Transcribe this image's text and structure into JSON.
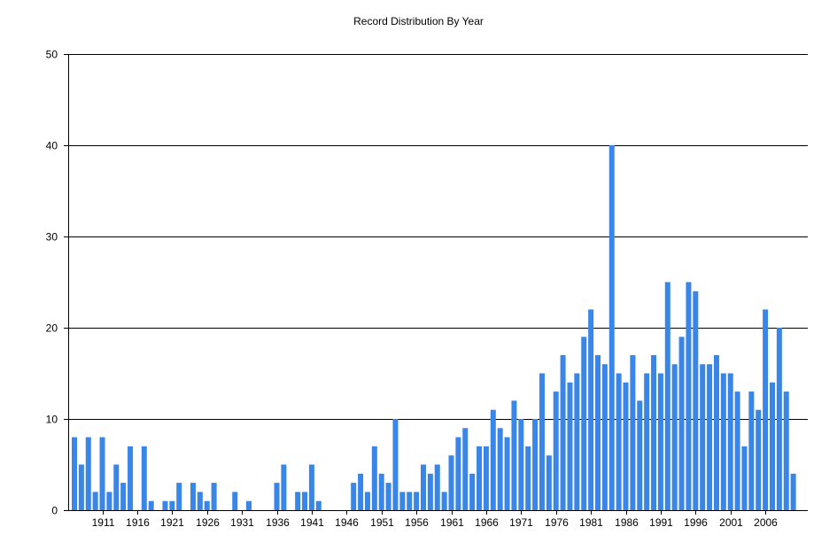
{
  "chart_data": {
    "type": "bar",
    "title": "Record Distribution By Year",
    "xlabel": "",
    "ylabel": "",
    "bar_color": "#3a86e8",
    "grid": true,
    "ylim": [
      0,
      50
    ],
    "yticks": [
      0,
      10,
      20,
      30,
      40,
      50
    ],
    "x_start": 1907,
    "x_end": 2010,
    "xtick_years": [
      1911,
      1916,
      1921,
      1926,
      1931,
      1936,
      1941,
      1946,
      1951,
      1956,
      1961,
      1966,
      1971,
      1976,
      1981,
      1986,
      1991,
      1996,
      2001,
      2006
    ],
    "xtick_labels": [
      "1911",
      "1916",
      "1921",
      "1926",
      "1931",
      "1936",
      "1941",
      "1946",
      "1951",
      "1956",
      "1961",
      "1966",
      "1971",
      "1976",
      "1981",
      "1986",
      "1991",
      "1996",
      "2001",
      "2006"
    ],
    "years": [
      1907,
      1908,
      1909,
      1910,
      1911,
      1912,
      1913,
      1914,
      1915,
      1916,
      1917,
      1918,
      1919,
      1920,
      1921,
      1922,
      1923,
      1924,
      1925,
      1926,
      1927,
      1928,
      1929,
      1930,
      1931,
      1932,
      1933,
      1934,
      1935,
      1936,
      1937,
      1938,
      1939,
      1940,
      1941,
      1942,
      1943,
      1944,
      1945,
      1946,
      1947,
      1948,
      1949,
      1950,
      1951,
      1952,
      1953,
      1954,
      1955,
      1956,
      1957,
      1958,
      1959,
      1960,
      1961,
      1962,
      1963,
      1964,
      1965,
      1966,
      1967,
      1968,
      1969,
      1970,
      1971,
      1972,
      1973,
      1974,
      1975,
      1976,
      1977,
      1978,
      1979,
      1980,
      1981,
      1982,
      1983,
      1984,
      1985,
      1986,
      1987,
      1988,
      1989,
      1990,
      1991,
      1992,
      1993,
      1994,
      1995,
      1996,
      1997,
      1998,
      1999,
      2000,
      2001,
      2002,
      2003,
      2004,
      2005,
      2006,
      2007,
      2008,
      2009,
      2010
    ],
    "values": [
      8,
      5,
      8,
      2,
      8,
      2,
      5,
      3,
      7,
      0,
      7,
      1,
      0,
      1,
      1,
      3,
      0,
      3,
      2,
      1,
      3,
      0,
      0,
      2,
      0,
      1,
      0,
      0,
      0,
      3,
      5,
      0,
      2,
      2,
      5,
      1,
      0,
      0,
      0,
      0,
      3,
      4,
      2,
      7,
      4,
      3,
      10,
      2,
      2,
      2,
      5,
      4,
      5,
      2,
      6,
      8,
      9,
      4,
      7,
      7,
      11,
      9,
      8,
      12,
      10,
      7,
      10,
      15,
      6,
      13,
      17,
      14,
      15,
      19,
      22,
      17,
      16,
      40,
      15,
      14,
      17,
      12,
      15,
      17,
      15,
      25,
      16,
      19,
      25,
      24,
      16,
      16,
      17,
      15,
      15,
      13,
      7,
      13,
      11,
      22,
      14,
      20,
      13,
      4
    ]
  }
}
